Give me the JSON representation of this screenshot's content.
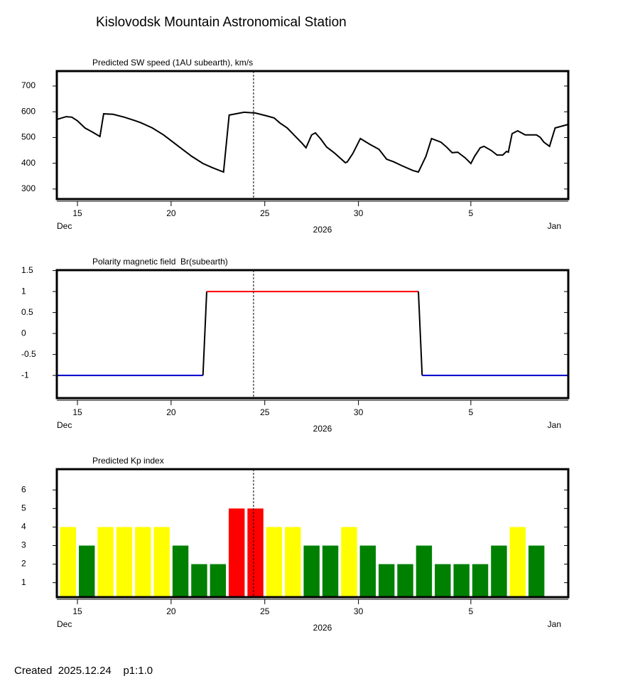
{
  "title": "Kislovodsk Mountain Astronomical Station",
  "footer": "Created  2025.12.24    p1:1.0",
  "chart_data": [
    {
      "type": "line",
      "title": "Predicted SW speed (1AU subearth), km/s",
      "color": "#000000",
      "x": [
        13.9,
        14.4,
        14.7,
        15.0,
        15.4,
        15.8,
        16.2,
        16.4,
        16.9,
        17.5,
        18.1,
        18.4,
        19.0,
        19.6,
        20.3,
        21.1,
        21.7,
        22.2,
        22.8,
        23.1,
        23.9,
        24.5,
        25.1,
        25.5,
        25.8,
        26.2,
        26.6,
        27.0,
        27.2,
        27.5,
        27.7,
        28.0,
        28.3,
        28.7,
        29.3,
        29.4,
        29.7,
        30.1,
        30.6,
        31.1,
        31.5,
        31.9,
        32.3,
        32.9,
        33.2,
        33.6,
        33.9,
        34.4,
        34.7,
        35.0,
        35.3,
        35.7,
        36.0,
        36.2,
        36.5,
        36.7,
        37.1,
        37.4,
        37.7,
        37.9,
        38.0,
        38.2,
        38.5,
        38.9,
        39.5,
        39.7,
        39.9,
        40.2,
        40.5,
        41.2
      ],
      "values": [
        570,
        581,
        579,
        565,
        537,
        521,
        504,
        592,
        590,
        579,
        565,
        557,
        537,
        510,
        471,
        427,
        399,
        383,
        366,
        587,
        598,
        595,
        584,
        576,
        557,
        537,
        507,
        477,
        460,
        510,
        518,
        493,
        463,
        441,
        402,
        405,
        438,
        496,
        474,
        454,
        416,
        405,
        391,
        372,
        366,
        427,
        496,
        482,
        463,
        441,
        443,
        421,
        399,
        427,
        460,
        466,
        449,
        432,
        432,
        446,
        443,
        515,
        526,
        510,
        510,
        501,
        482,
        466,
        537,
        551
      ],
      "xlim": [
        13.9,
        41.2
      ],
      "xticks": [
        15,
        20,
        25,
        30,
        {
          "value": 36,
          "label": "5"
        }
      ],
      "ylim": [
        261,
        758
      ],
      "yticks": [
        300,
        400,
        500,
        600,
        700
      ],
      "month_labels": [
        "Dec",
        "Jan"
      ],
      "xlabel": "2026",
      "marker_x": 24.4
    },
    {
      "type": "line",
      "title": "Polarity magnetic field  Br(subearth)",
      "color": "#000000",
      "negative_color": "#0000cc",
      "positive_color": "#ff0000",
      "x": [
        13.9,
        21.7,
        21.9,
        33.2,
        33.4,
        41.2
      ],
      "values": [
        -1,
        -1,
        1,
        1,
        -1,
        -1
      ],
      "xlim": [
        13.9,
        41.2
      ],
      "xticks": [
        15,
        20,
        25,
        30,
        {
          "value": 36,
          "label": "5"
        }
      ],
      "ylim": [
        -1.54,
        1.51
      ],
      "yticks": [
        -1,
        -0.5,
        0,
        0.5,
        1,
        1.5
      ],
      "month_labels": [
        "Dec",
        "Jan"
      ],
      "xlabel": "2026",
      "marker_x": 24.4
    },
    {
      "type": "bar",
      "title": "Predicted Kp index",
      "x": [
        14.5,
        15.5,
        16.5,
        17.5,
        18.5,
        19.5,
        20.5,
        21.5,
        22.5,
        23.5,
        24.5,
        25.5,
        26.5,
        27.5,
        28.5,
        29.5,
        30.5,
        31.5,
        32.5,
        33.5,
        34.5,
        35.5,
        36.5,
        37.5,
        38.5,
        39.5
      ],
      "values": [
        4,
        3,
        4,
        4,
        4,
        4,
        3,
        2,
        2,
        5,
        5,
        4,
        4,
        3,
        3,
        4,
        3,
        2,
        2,
        3,
        2,
        2,
        2,
        3,
        4,
        3
      ],
      "colors": [
        "#ffff00",
        "#008000",
        "#ffff00",
        "#ffff00",
        "#ffff00",
        "#ffff00",
        "#008000",
        "#008000",
        "#008000",
        "#ff0000",
        "#ff0000",
        "#ffff00",
        "#ffff00",
        "#008000",
        "#008000",
        "#ffff00",
        "#008000",
        "#008000",
        "#008000",
        "#008000",
        "#008000",
        "#008000",
        "#008000",
        "#008000",
        "#ffff00",
        "#008000"
      ],
      "xlim": [
        13.9,
        41.2
      ],
      "xticks": [
        15,
        20,
        25,
        30,
        {
          "value": 36,
          "label": "5"
        }
      ],
      "ylim": [
        0.22,
        7.12
      ],
      "yticks": [
        1,
        2,
        3,
        4,
        5,
        6
      ],
      "month_labels": [
        "Dec",
        "Jan"
      ],
      "xlabel": "2026",
      "marker_x": 24.4
    }
  ]
}
